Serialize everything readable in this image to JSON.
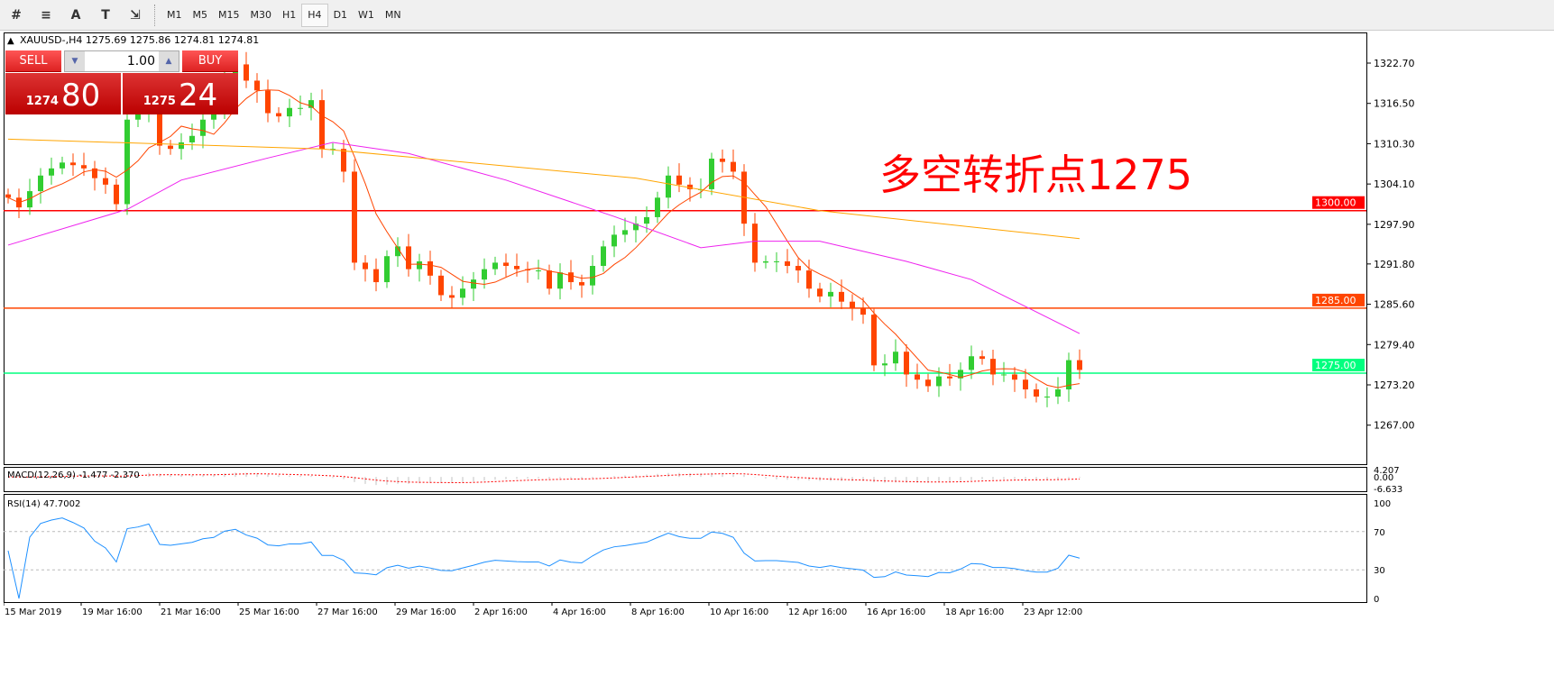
{
  "toolbar": {
    "icons": [
      "indicators-icon",
      "fibonacci-icon",
      "text-icon",
      "text-label-icon",
      "arrows-icon"
    ],
    "icon_glyphs": [
      "#",
      "≡",
      "A",
      "T",
      "⇲"
    ],
    "timeframes": [
      "M1",
      "M5",
      "M15",
      "M30",
      "H1",
      "H4",
      "D1",
      "W1",
      "MN"
    ],
    "active_timeframe": "H4"
  },
  "chart_header": {
    "symbol": "XAUUSD-,H4",
    "ohlc": "1275.69 1275.86 1274.81 1274.81"
  },
  "trade_panel": {
    "sell_label": "SELL",
    "buy_label": "BUY",
    "lots": "1.00",
    "sell_small": "1274",
    "sell_big": "80",
    "buy_small": "1275",
    "buy_big": "24"
  },
  "annotation": "多空转折点1275",
  "colors": {
    "bull": "#32cd32",
    "bear": "#ff4500",
    "ma_fast": "#ff4500",
    "ma_mid": "#ee22ee",
    "ma_slow": "#ffa500",
    "line_1300": "#ff0000",
    "line_1285": "#ff4500",
    "line_1275": "#00ff7f",
    "rsi": "#1e90ff",
    "macd_signal": "#ff0000",
    "macd_hist": "#c0c0c0"
  },
  "chart_data": {
    "type": "candlestick",
    "price_ticks": [
      "1322.70",
      "1316.50",
      "1310.30",
      "1304.10",
      "1297.90",
      "1291.80",
      "1285.60",
      "1279.40",
      "1273.20",
      "1267.00"
    ],
    "ylim": [
      1264.0,
      1327.0
    ],
    "horizontal_lines": [
      {
        "price": 1300.0,
        "label": "1300.00"
      },
      {
        "price": 1285.0,
        "label": "1285.00"
      },
      {
        "price": 1275.0,
        "label": "1275.00"
      }
    ],
    "closes": [
      1302.0,
      1300.5,
      1303,
      1305.4,
      1306.5,
      1307.4,
      1307,
      1306.5,
      1305,
      1304,
      1301,
      1314,
      1315.5,
      1318.5,
      1310,
      1309.5,
      1310.5,
      1311.5,
      1314,
      1315,
      1320.5,
      1322.5,
      1320,
      1318.5,
      1315,
      1314.5,
      1315.8,
      1315.8,
      1317,
      1309.5,
      1309.5,
      1306,
      1292,
      1291,
      1289,
      1293,
      1294.5,
      1291,
      1292.2,
      1290,
      1287,
      1286.6,
      1288,
      1289.4,
      1291,
      1292,
      1291.5,
      1291,
      1290.8,
      1290.8,
      1288,
      1290.5,
      1289,
      1288.5,
      1291.5,
      1294.5,
      1296.3,
      1297,
      1298,
      1299,
      1302,
      1305.4,
      1304,
      1303.3,
      1303.3,
      1308,
      1307.5,
      1306,
      1298,
      1292,
      1292.2,
      1292.2,
      1291.5,
      1290.8,
      1288,
      1286.8,
      1287.5,
      1286,
      1285,
      1284,
      1276.2,
      1276.5,
      1278.3,
      1274.8,
      1274,
      1273,
      1274.5,
      1274.2,
      1275.5,
      1277.6,
      1277.2,
      1274.8,
      1274.8,
      1274,
      1272.5,
      1271.4,
      1271.4,
      1272.5,
      1277,
      1275.5
    ],
    "ma_mid": [
      [
        0,
        1294.7
      ],
      [
        11,
        1300.2
      ],
      [
        16,
        1304.7
      ],
      [
        24,
        1308.1
      ],
      [
        30,
        1310.5
      ],
      [
        37,
        1308.8
      ],
      [
        46,
        1304.7
      ],
      [
        56,
        1299.1
      ],
      [
        64,
        1294.3
      ],
      [
        69,
        1295.3
      ],
      [
        75,
        1295.3
      ],
      [
        83,
        1292.2
      ],
      [
        89,
        1289.4
      ],
      [
        99,
        1281.1
      ]
    ],
    "ma_slow": [
      [
        0,
        1311.0
      ],
      [
        29,
        1309.5
      ],
      [
        58,
        1305.0
      ],
      [
        75,
        1300.0
      ],
      [
        99,
        1295.7
      ]
    ],
    "time_labels": [
      "15 Mar 2019",
      "19 Mar 16:00",
      "21 Mar 16:00",
      "25 Mar 16:00",
      "27 Mar 16:00",
      "29 Mar 16:00",
      "2 Apr 16:00",
      "4 Apr 16:00",
      "8 Apr 16:00",
      "10 Apr 16:00",
      "12 Apr 16:00",
      "16 Apr 16:00",
      "18 Apr 16:00",
      "23 Apr 12:00"
    ],
    "macd": {
      "label": "MACD(12,26,9) -1.477 -2.370",
      "ticks": [
        "4.207",
        "0.00",
        "-6.633"
      ],
      "ylim": [
        -6.633,
        4.207
      ]
    },
    "rsi": {
      "label": "RSI(14) 47.7002",
      "ticks": [
        "100",
        "70",
        "30",
        "0"
      ],
      "levels": [
        70,
        30
      ]
    }
  }
}
